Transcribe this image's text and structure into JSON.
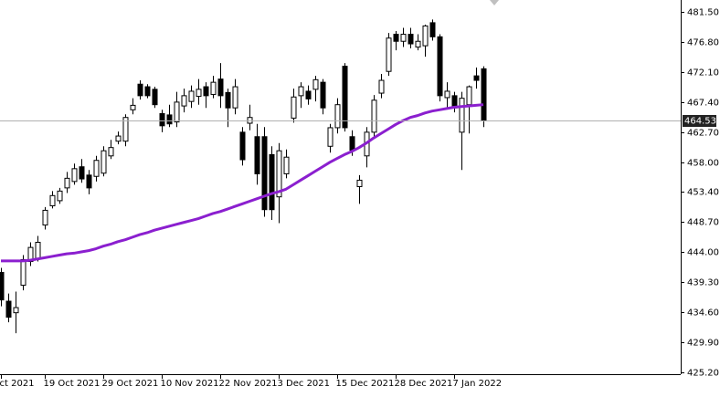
{
  "chart_data": {
    "type": "candlestick",
    "categories": [
      "ct 2021",
      null,
      null,
      null,
      null,
      null,
      "19 Oct 2021",
      null,
      null,
      null,
      null,
      null,
      null,
      null,
      "29 Oct 2021",
      null,
      null,
      null,
      null,
      null,
      null,
      null,
      "10 Nov 2021",
      null,
      null,
      null,
      null,
      null,
      null,
      null,
      "22 Nov 2021",
      null,
      null,
      null,
      null,
      null,
      null,
      null,
      "3 Dec 2021",
      null,
      null,
      null,
      null,
      null,
      null,
      null,
      "15 Dec 2021",
      null,
      null,
      null,
      null,
      null,
      null,
      null,
      "28 Dec 2021",
      null,
      null,
      null,
      null,
      null,
      null,
      null,
      "7 Jan 2022",
      null,
      null,
      null,
      null
    ],
    "open": [
      440.8,
      436.3,
      434.5,
      438.8,
      442.5,
      443.0,
      448.2,
      451.2,
      452.0,
      454.0,
      455.0,
      457.3,
      456.0,
      455.8,
      456.3,
      459.0,
      461.3,
      461.3,
      466.2,
      470.2,
      469.8,
      469.4,
      465.6,
      465.4,
      464.3,
      466.8,
      467.5,
      468.3,
      469.8,
      468.6,
      471.0,
      468.9,
      466.5,
      462.7,
      464.1,
      462.0,
      462.0,
      459.2,
      452.6,
      456.2,
      464.9,
      468.4,
      469.1,
      469.4,
      470.5,
      460.5,
      463.4,
      473.0,
      462.0,
      454.2,
      459.0,
      462.7,
      468.8,
      472.2,
      478.0,
      476.9,
      478.0,
      476.0,
      476.2,
      479.8,
      477.6,
      468.1,
      468.4,
      462.7,
      467.0,
      471.5,
      472.6
    ],
    "high": [
      441.5,
      437.5,
      437.8,
      443.5,
      445.5,
      446.5,
      451.0,
      453.5,
      454.0,
      456.5,
      457.8,
      458.5,
      456.8,
      459.0,
      460.5,
      461.5,
      462.8,
      465.5,
      468.0,
      470.8,
      470.2,
      469.8,
      466.2,
      467.0,
      469.0,
      469.5,
      470.0,
      471.0,
      470.5,
      471.5,
      473.5,
      469.5,
      471.0,
      463.5,
      467.0,
      464.0,
      463.5,
      460.5,
      461.0,
      460.0,
      469.5,
      470.5,
      470.0,
      471.5,
      471.0,
      464.0,
      468.0,
      473.5,
      463.0,
      456.0,
      463.5,
      468.5,
      471.8,
      478.2,
      478.5,
      479.0,
      479.0,
      478.0,
      479.5,
      480.3,
      478.0,
      470.5,
      469.0,
      469.0,
      470.0,
      472.8,
      473.0
    ],
    "low": [
      435.5,
      433.0,
      431.3,
      438.0,
      441.8,
      442.5,
      447.5,
      450.8,
      451.5,
      453.2,
      454.5,
      454.8,
      453.0,
      455.0,
      455.8,
      458.5,
      460.8,
      460.5,
      465.5,
      467.8,
      468.0,
      466.5,
      462.7,
      463.5,
      463.5,
      465.8,
      466.5,
      467.0,
      466.5,
      468.0,
      466.5,
      463.5,
      465.5,
      457.5,
      463.0,
      454.5,
      449.5,
      449.0,
      448.5,
      455.5,
      464.2,
      466.5,
      467.0,
      467.5,
      465.5,
      459.5,
      462.5,
      462.8,
      459.0,
      451.5,
      457.2,
      462.0,
      468.0,
      471.5,
      475.5,
      476.0,
      475.8,
      475.5,
      474.5,
      477.0,
      467.5,
      466.5,
      465.8,
      456.8,
      462.5,
      469.5,
      463.5
    ],
    "close": [
      436.5,
      433.8,
      435.3,
      442.8,
      444.7,
      445.5,
      450.5,
      452.8,
      453.5,
      455.5,
      457.0,
      455.4,
      454.0,
      458.3,
      459.8,
      460.3,
      462.1,
      465.0,
      466.9,
      468.4,
      468.4,
      467.0,
      463.7,
      464.0,
      467.4,
      468.4,
      469.1,
      469.4,
      468.4,
      470.5,
      468.4,
      466.5,
      469.8,
      458.4,
      465.0,
      456.2,
      450.6,
      450.6,
      459.8,
      458.8,
      468.2,
      469.8,
      467.9,
      470.9,
      466.5,
      463.4,
      467.0,
      463.4,
      459.9,
      455.2,
      462.7,
      467.7,
      470.8,
      477.4,
      476.9,
      478.0,
      476.5,
      476.9,
      479.3,
      477.6,
      468.4,
      469.1,
      466.5,
      468.0,
      469.8,
      470.8,
      464.53
    ],
    "ma": {
      "color": "#8b1fcf",
      "values": [
        442.6,
        442.6,
        442.6,
        442.6,
        442.7,
        442.9,
        443.1,
        443.3,
        443.5,
        443.7,
        443.8,
        444.0,
        444.2,
        444.5,
        444.9,
        445.2,
        445.6,
        445.9,
        446.3,
        446.7,
        447.0,
        447.4,
        447.7,
        448.0,
        448.3,
        448.6,
        448.9,
        449.2,
        449.6,
        450.0,
        450.3,
        450.7,
        451.1,
        451.5,
        451.9,
        452.3,
        452.7,
        453.1,
        453.4,
        453.8,
        454.5,
        455.2,
        455.9,
        456.6,
        457.3,
        458.0,
        458.6,
        459.2,
        459.7,
        460.3,
        461.0,
        461.8,
        462.5,
        463.2,
        463.9,
        464.5,
        465.0,
        465.3,
        465.7,
        466.0,
        466.2,
        466.4,
        466.6,
        466.7,
        466.8,
        466.9,
        467.0
      ]
    },
    "up_color": "#ffffff",
    "down_color": "#000000",
    "last_price": 464.53,
    "ylim": [
      424.9,
      483.35
    ],
    "yticks": [
      {
        "value": 425.2,
        "label": "425.20"
      },
      {
        "value": 429.9,
        "label": "429.90"
      },
      {
        "value": 434.6,
        "label": "434.60"
      },
      {
        "value": 439.3,
        "label": "439.30"
      },
      {
        "value": 444.0,
        "label": "444.00"
      },
      {
        "value": 448.7,
        "label": "448.70"
      },
      {
        "value": 453.4,
        "label": "453.40"
      },
      {
        "value": 458.0,
        "label": "458.00"
      },
      {
        "value": 462.7,
        "label": "462.70"
      },
      {
        "value": 467.4,
        "label": "467.40"
      },
      {
        "value": 472.1,
        "label": "472.10"
      },
      {
        "value": 476.8,
        "label": "476.80"
      },
      {
        "value": 481.5,
        "label": "481.50"
      }
    ]
  }
}
